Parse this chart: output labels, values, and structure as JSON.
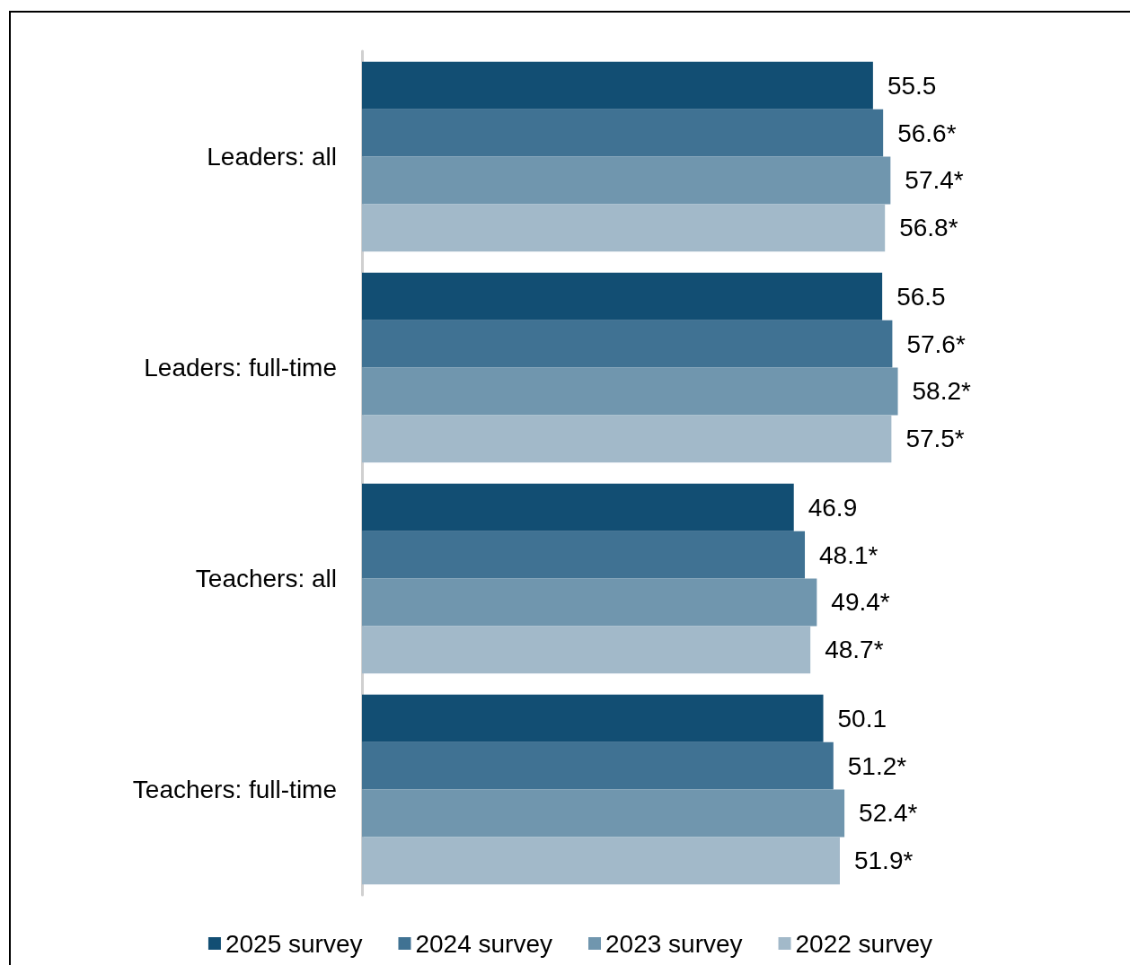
{
  "chart_data": {
    "type": "bar",
    "orientation": "horizontal",
    "legend": "bottom",
    "grid": false,
    "categories": [
      "Leaders: all",
      "Leaders: full-time",
      "Teachers: all",
      "Teachers: full-time"
    ],
    "series": [
      {
        "name": "2025 survey",
        "color": "#124e73",
        "values": [
          55.5,
          56.5,
          46.9,
          50.1
        ],
        "value_labels": [
          "55.5",
          "56.5",
          "46.9",
          "50.1"
        ]
      },
      {
        "name": "2024 survey",
        "color": "#407293",
        "values": [
          56.6,
          57.6,
          48.1,
          51.2
        ],
        "value_labels": [
          "56.6*",
          "57.6*",
          "48.1*",
          "51.2*"
        ]
      },
      {
        "name": "2023 survey",
        "color": "#7096ae",
        "values": [
          57.4,
          58.2,
          49.4,
          52.4
        ],
        "value_labels": [
          "57.4*",
          "58.2*",
          "49.4*",
          "52.4*"
        ]
      },
      {
        "name": "2022 survey",
        "color": "#a2b9c9",
        "values": [
          56.8,
          57.5,
          48.7,
          51.9
        ],
        "value_labels": [
          "56.8*",
          "57.5*",
          "48.7*",
          "51.9*"
        ]
      }
    ]
  }
}
